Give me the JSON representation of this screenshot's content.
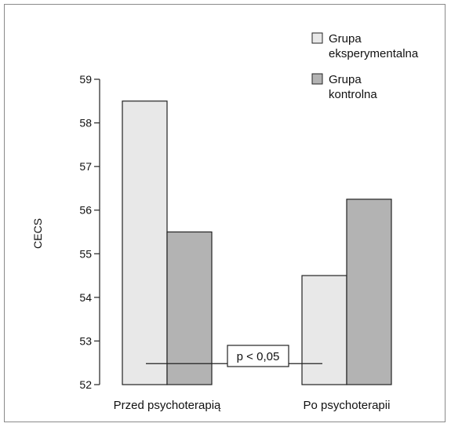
{
  "chart_data": {
    "type": "bar",
    "title": "",
    "xlabel": "",
    "ylabel": "CECS",
    "ylim": [
      52,
      59
    ],
    "yticks": [
      52,
      53,
      54,
      55,
      56,
      57,
      58,
      59
    ],
    "categories": [
      "Przed psychoterapią",
      "Po psychoterapii"
    ],
    "series": [
      {
        "name": "Grupa eksperymentalna",
        "name_lines": [
          "Grupa",
          "eksperymentalna"
        ],
        "color": "#e8e8e8",
        "values": [
          58.5,
          54.5
        ]
      },
      {
        "name": "Grupa kontrolna",
        "name_lines": [
          "Grupa",
          "kontrolna"
        ],
        "color": "#b3b3b3",
        "values": [
          55.5,
          56.25
        ]
      }
    ],
    "legend": "top-right",
    "grid": false,
    "annotation": {
      "text": "p < 0,05",
      "y": 52.5
    }
  }
}
